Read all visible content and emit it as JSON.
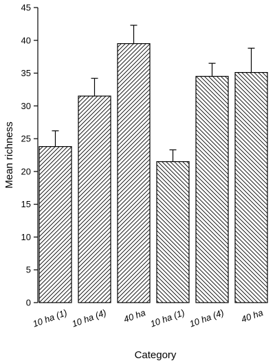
{
  "chart_data": {
    "type": "bar",
    "title": "",
    "xlabel": "Category",
    "ylabel": "Mean richness",
    "ylim": [
      0,
      45
    ],
    "yticks": [
      0,
      5,
      10,
      15,
      20,
      25,
      30,
      35,
      40,
      45
    ],
    "grid": false,
    "categories": [
      "10 ha (1)",
      "10 ha (4)",
      "40 ha",
      "10 ha (1)",
      "10 ha (4)",
      "40 ha"
    ],
    "values": [
      23.8,
      31.5,
      39.5,
      21.5,
      34.5,
      35.1
    ],
    "error_upper": [
      2.4,
      2.7,
      2.8,
      1.8,
      2.0,
      3.7
    ],
    "hatch": [
      "forward",
      "forward",
      "forward",
      "backward",
      "backward",
      "backward"
    ]
  }
}
